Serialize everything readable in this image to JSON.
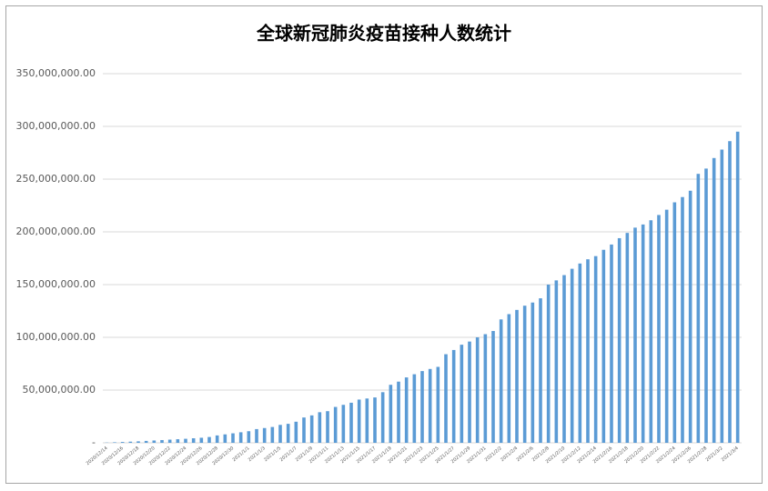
{
  "chart_data": {
    "type": "bar",
    "title": "全球新冠肺炎疫苗接种人数统计",
    "categories": [
      "2020/12/14",
      null,
      "2020/12/16",
      null,
      "2020/12/18",
      null,
      "2020/12/20",
      null,
      "2020/12/22",
      null,
      "2020/12/24",
      null,
      "2020/12/26",
      null,
      "2020/12/28",
      null,
      "2020/12/30",
      null,
      "2021/1/1",
      null,
      "2021/1/3",
      null,
      "2021/1/5",
      null,
      "2021/1/7",
      null,
      "2021/1/9",
      null,
      "2021/1/11",
      null,
      "2021/1/13",
      null,
      "2021/1/15",
      null,
      "2021/1/17",
      null,
      "2021/1/19",
      null,
      "2021/1/21",
      null,
      "2021/1/23",
      null,
      "2021/1/25",
      null,
      "2021/1/27",
      null,
      "2021/1/29",
      null,
      "2021/1/31",
      null,
      "2021/2/2",
      null,
      "2021/2/4",
      null,
      "2021/2/6",
      null,
      "2021/2/8",
      null,
      "2021/2/10",
      null,
      "2021/2/12",
      null,
      "2021/2/14",
      null,
      "2021/2/16",
      null,
      "2021/2/18",
      null,
      "2021/2/20",
      null,
      "2021/2/22",
      null,
      "2021/2/24",
      null,
      "2021/2/26",
      null,
      "2021/2/28",
      null,
      "2021/3/2",
      null,
      "2021/3/4"
    ],
    "values": [
      200000,
      500000,
      800000,
      1100000,
      1400000,
      1800000,
      2200000,
      2600000,
      3000000,
      3400000,
      3800000,
      4300000,
      4800000,
      5500000,
      7000000,
      8000000,
      9000000,
      10000000,
      11000000,
      13000000,
      14000000,
      15000000,
      17000000,
      18000000,
      20000000,
      24000000,
      26000000,
      29000000,
      30000000,
      34000000,
      36000000,
      38000000,
      41000000,
      42000000,
      43000000,
      48000000,
      55000000,
      58000000,
      62000000,
      65000000,
      68000000,
      70000000,
      72000000,
      84000000,
      88000000,
      93000000,
      96000000,
      100000000,
      103000000,
      106000000,
      117000000,
      122000000,
      126000000,
      130000000,
      133000000,
      137000000,
      150000000,
      154000000,
      159000000,
      165000000,
      170000000,
      174000000,
      177000000,
      183000000,
      188000000,
      194000000,
      199000000,
      204000000,
      207000000,
      211000000,
      216000000,
      221000000,
      228000000,
      233000000,
      239000000,
      255000000,
      260000000,
      270000000,
      278000000,
      286000000,
      295000000
    ],
    "color": "#5b9bd5",
    "ylim": [
      0,
      350000000
    ],
    "yticks": [
      {
        "value": 0,
        "label": "-"
      },
      {
        "value": 50000000,
        "label": "50,000,000.00"
      },
      {
        "value": 100000000,
        "label": "100,000,000.00"
      },
      {
        "value": 150000000,
        "label": "150,000,000.00"
      },
      {
        "value": 200000000,
        "label": "200,000,000.00"
      },
      {
        "value": 250000000,
        "label": "250,000,000.00"
      },
      {
        "value": 300000000,
        "label": "300,000,000.00"
      },
      {
        "value": 350000000,
        "label": "350,000,000.00"
      }
    ],
    "grid": true
  }
}
